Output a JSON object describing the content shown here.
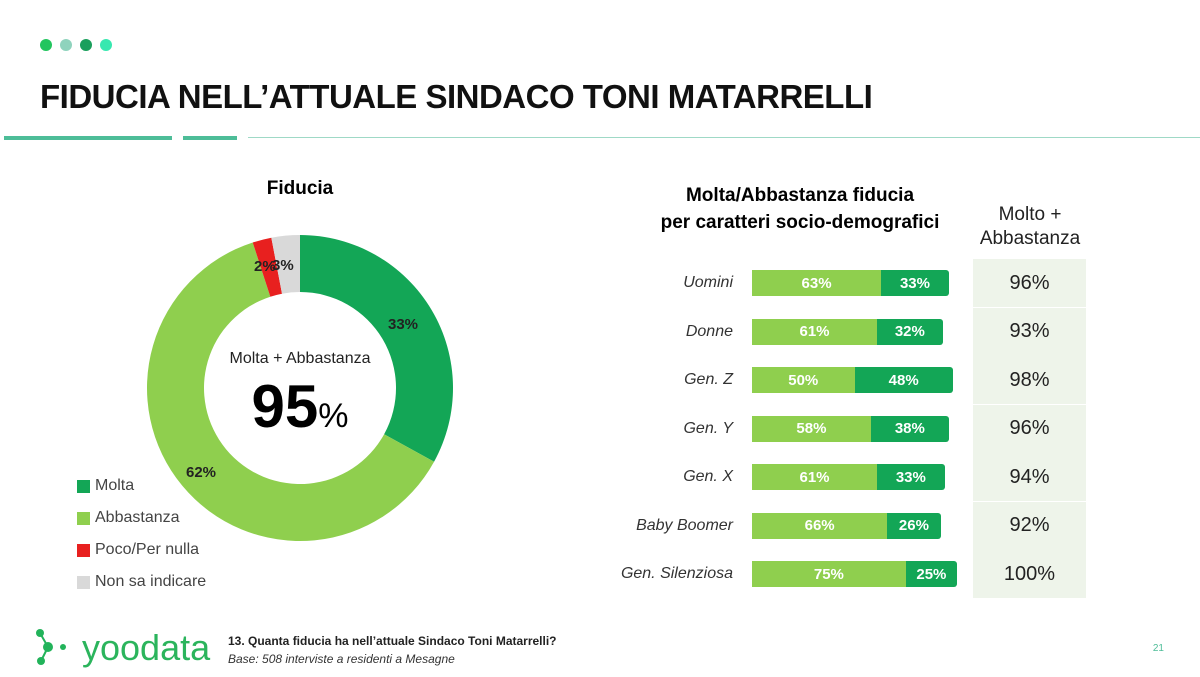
{
  "header": {
    "title": "FIDUCIA NELL’ATTUALE SINDACO TONI MATARRELLI",
    "dots": [
      "#22c55e",
      "#8fd3bd",
      "#1a9f5c",
      "#38e8b0"
    ]
  },
  "colors": {
    "molta": "#13a656",
    "abbastanza": "#8fcf4e",
    "poco": "#e8201f",
    "non_sa": "#d9d9d9",
    "accent": "#4dbd98"
  },
  "chart_data": [
    {
      "type": "pie",
      "title": "Fiducia",
      "center_label": "Molta + Abbastanza",
      "center_value": "95",
      "center_unit": "%",
      "slices": [
        {
          "name": "Molta",
          "value": 33,
          "label": "33%"
        },
        {
          "name": "Abbastanza",
          "value": 62,
          "label": "62%"
        },
        {
          "name": "Poco/Per nulla",
          "value": 2,
          "label": "2%"
        },
        {
          "name": "Non sa indicare",
          "value": 3,
          "label": "3%"
        }
      ],
      "legend": "bottom-left"
    },
    {
      "type": "bar",
      "stacked": true,
      "orientation": "horizontal",
      "title_line1": "Molta/Abbastanza fiducia",
      "title_line2": "per caratteri socio-demografici",
      "categories": [
        "Uomini",
        "Donne",
        "Gen. Z",
        "Gen. Y",
        "Gen. X",
        "Baby Boomer",
        "Gen. Silenziosa"
      ],
      "series": [
        {
          "name": "Abbastanza",
          "values": [
            63,
            61,
            50,
            58,
            61,
            66,
            75
          ]
        },
        {
          "name": "Molta",
          "values": [
            33,
            32,
            48,
            38,
            33,
            26,
            25
          ]
        }
      ],
      "total_header": "Molto + Abbastanza",
      "totals": [
        "96%",
        "93%",
        "98%",
        "96%",
        "94%",
        "92%",
        "100%"
      ]
    }
  ],
  "footer": {
    "logo": "yoodata",
    "question": "13. Quanta fiducia ha nell’attuale Sindaco Toni Matarrelli?",
    "base": "Base: 508 interviste a residenti a Mesagne",
    "page": "21"
  }
}
